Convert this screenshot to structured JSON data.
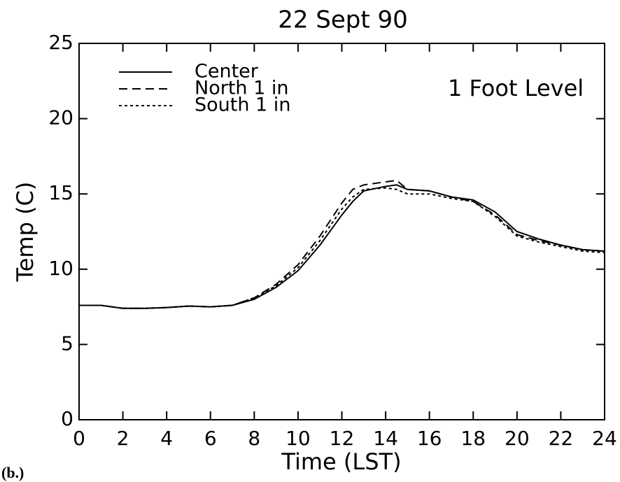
{
  "chart_data": {
    "type": "line",
    "title": "22 Sept 90",
    "annotation": "1 Foot Level",
    "panel_label": "(b.)",
    "x_label": "Time (LST)",
    "y_label": "Temp (C)",
    "x": [
      0,
      1,
      2,
      3,
      4,
      5,
      6,
      7,
      8,
      9,
      10,
      11,
      12,
      12.5,
      13,
      14,
      14.5,
      15,
      16,
      17,
      18,
      19,
      20,
      21,
      22,
      23,
      24
    ],
    "series": [
      {
        "name": "Center",
        "color": "#000000",
        "dash": "solid",
        "values": [
          7.6,
          7.6,
          7.4,
          7.4,
          7.45,
          7.55,
          7.5,
          7.6,
          8.0,
          8.8,
          9.9,
          11.6,
          13.6,
          14.5,
          15.2,
          15.5,
          15.6,
          15.3,
          15.2,
          14.8,
          14.6,
          13.8,
          12.5,
          12.0,
          11.6,
          11.3,
          11.2
        ]
      },
      {
        "name": "North 1 in",
        "color": "#000000",
        "dash": "dashed",
        "values": [
          7.6,
          7.6,
          7.4,
          7.4,
          7.45,
          7.55,
          7.5,
          7.6,
          8.1,
          9.0,
          10.3,
          12.2,
          14.4,
          15.3,
          15.6,
          15.8,
          15.9,
          15.3,
          15.2,
          14.8,
          14.5,
          13.6,
          12.3,
          11.9,
          11.6,
          11.3,
          11.2
        ]
      },
      {
        "name": "South 1 in",
        "color": "#000000",
        "dash": "dotted",
        "values": [
          7.6,
          7.6,
          7.4,
          7.4,
          7.45,
          7.55,
          7.5,
          7.6,
          8.1,
          8.9,
          10.1,
          11.9,
          14.0,
          14.8,
          15.3,
          15.4,
          15.3,
          15.0,
          15.0,
          14.7,
          14.5,
          13.5,
          12.2,
          11.8,
          11.5,
          11.2,
          11.1
        ]
      }
    ],
    "xlim": [
      0,
      24
    ],
    "xticks": [
      0,
      2,
      4,
      6,
      8,
      10,
      12,
      14,
      16,
      18,
      20,
      22,
      24
    ],
    "ylim": [
      0,
      25
    ],
    "yticks": [
      0,
      5,
      10,
      15,
      20,
      25
    ],
    "grid": false,
    "legend": "upper left"
  }
}
